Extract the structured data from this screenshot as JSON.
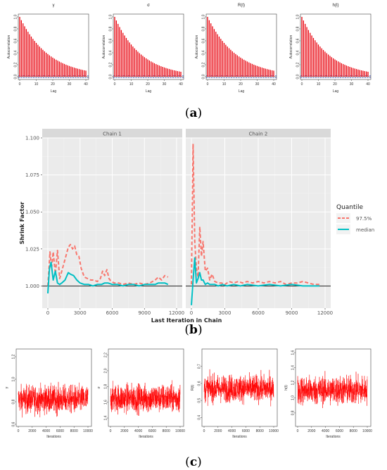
{
  "captions": {
    "a": "a",
    "b": "b",
    "c": "c"
  },
  "panel_a": {
    "xlabel": "Lag",
    "ylabel": "Autocorrelation",
    "yticks": [
      "0.0",
      "0.2",
      "0.4",
      "0.6",
      "0.8",
      "1.0"
    ],
    "xticks": [
      "0",
      "10",
      "20",
      "30",
      "40"
    ],
    "bar_color": "#e8000b",
    "ci_color": "#3b4bd8"
  },
  "panel_b": {
    "facets": [
      "Chain 1",
      "Chain 2"
    ],
    "xlabel": "Last Iteration in Chain",
    "ylabel": "Shrink Factor",
    "legend_title": "Quantile",
    "legend_items": [
      "97.5%",
      "median"
    ],
    "line_colors": {
      "q975": "#f8766d",
      "median": "#00bfc4"
    },
    "yticks": [
      "1.000",
      "1.025",
      "1.050",
      "1.075",
      "1.100"
    ],
    "xticks": [
      "0",
      "3000",
      "6000",
      "9000",
      "12000"
    ]
  },
  "panel_c": {
    "xlabel": "Iterations",
    "xticks": [
      "0",
      "2000",
      "4000",
      "6000",
      "8000",
      "10000"
    ],
    "trace_color": "#ff0000"
  },
  "chart_data": [
    {
      "type": "bar",
      "title": "γ",
      "xlabel": "Lag",
      "ylabel": "Autocorrelation",
      "x": [
        0,
        40
      ],
      "ylim": [
        0,
        1
      ],
      "decay": 0.053
    },
    {
      "type": "bar",
      "title": "σ",
      "xlabel": "Lag",
      "ylabel": "Autocorrelation",
      "x": [
        0,
        40
      ],
      "ylim": [
        0,
        1
      ],
      "decay": 0.058
    },
    {
      "type": "bar",
      "title": "R(t)",
      "xlabel": "Lag",
      "ylabel": "Autocorrelation",
      "x": [
        0,
        40
      ],
      "ylim": [
        0,
        1
      ],
      "decay": 0.053
    },
    {
      "type": "bar",
      "title": "h(t)",
      "xlabel": "Lag",
      "ylabel": "Autocorrelation",
      "x": [
        0,
        40
      ],
      "ylim": [
        0,
        1
      ],
      "decay": 0.058
    },
    {
      "type": "line",
      "facets": [
        "Chain 1",
        "Chain 2"
      ],
      "xlabel": "Last Iteration in Chain",
      "ylabel": "Shrink Factor",
      "xlim": [
        0,
        12000
      ],
      "ylim": [
        0.985,
        1.1
      ],
      "legend": "right",
      "series": [
        {
          "name": "97.5%",
          "facet": "Chain 1",
          "x": [
            0,
            200,
            350,
            500,
            700,
            900,
            1100,
            1300,
            1600,
            1900,
            2100,
            2300,
            2500,
            2700,
            2900,
            3100,
            3400,
            3700,
            4000,
            4300,
            4600,
            4900,
            5100,
            5300,
            5500,
            5700,
            5900,
            6200,
            6600,
            7000,
            7500,
            8000,
            8500,
            9000,
            9500,
            10000,
            10300,
            10600,
            10900,
            11200
          ],
          "values": [
            1.0,
            1.023,
            1.012,
            1.023,
            1.008,
            1.024,
            1.005,
            1.01,
            1.018,
            1.026,
            1.028,
            1.025,
            1.027,
            1.021,
            1.02,
            1.012,
            1.006,
            1.005,
            1.004,
            1.004,
            1.003,
            1.005,
            1.01,
            1.007,
            1.011,
            1.005,
            1.003,
            1.002,
            1.002,
            1.001,
            1.002,
            1.001,
            1.002,
            1.001,
            1.002,
            1.004,
            1.006,
            1.004,
            1.007,
            1.006
          ]
        },
        {
          "name": "median",
          "facet": "Chain 1",
          "x": [
            0,
            150,
            300,
            500,
            700,
            900,
            1100,
            1300,
            1600,
            1900,
            2100,
            2400,
            2700,
            3000,
            3400,
            3800,
            4200,
            4600,
            5000,
            5300,
            5600,
            6000,
            6500,
            7000,
            7500,
            8000,
            8500,
            9000,
            9500,
            10000,
            10300,
            10600,
            10900,
            11200
          ],
          "values": [
            0.995,
            1.012,
            1.016,
            1.004,
            1.01,
            1.002,
            1.001,
            1.002,
            1.004,
            1.009,
            1.008,
            1.007,
            1.004,
            1.002,
            1.001,
            1.001,
            1.0,
            1.001,
            1.001,
            1.002,
            1.002,
            1.001,
            1.001,
            1.0,
            1.001,
            1.001,
            1.0,
            1.001,
            1.001,
            1.001,
            1.002,
            1.002,
            1.002,
            1.001
          ]
        },
        {
          "name": "97.5%",
          "facet": "Chain 2",
          "x": [
            0,
            150,
            300,
            450,
            600,
            750,
            900,
            1050,
            1250,
            1450,
            1650,
            1850,
            2100,
            2400,
            2700,
            3000,
            3400,
            3800,
            4200,
            4600,
            5000,
            5500,
            6000,
            6500,
            7000,
            7500,
            8000,
            8500,
            9000,
            9500,
            10000,
            10500,
            11000,
            11500
          ],
          "values": [
            1.001,
            1.096,
            1.03,
            1.012,
            1.006,
            1.04,
            1.02,
            1.03,
            1.01,
            1.012,
            1.004,
            1.008,
            1.003,
            1.002,
            1.002,
            1.001,
            1.003,
            1.002,
            1.003,
            1.002,
            1.003,
            1.002,
            1.003,
            1.002,
            1.003,
            1.002,
            1.003,
            1.001,
            1.002,
            1.002,
            1.003,
            1.002,
            1.001,
            1.001
          ]
        },
        {
          "name": "median",
          "facet": "Chain 2",
          "x": [
            0,
            150,
            300,
            450,
            600,
            750,
            900,
            1050,
            1250,
            1450,
            1650,
            1850,
            2100,
            2400,
            2800,
            3200,
            3800,
            4400,
            5000,
            6000,
            7000,
            8000,
            9000,
            10000,
            11000,
            11500
          ],
          "values": [
            0.987,
            1.004,
            1.019,
            1.002,
            1.005,
            1.009,
            1.004,
            1.004,
            1.001,
            1.002,
            1.001,
            1.001,
            1.001,
            1.0,
            1.001,
            1.0,
            1.001,
            1.0,
            1.001,
            1.0,
            1.001,
            1.0,
            1.001,
            1.0,
            1.0,
            1.0
          ]
        }
      ]
    },
    {
      "type": "line",
      "ylabel": "γ",
      "xlabel": "Iterations",
      "xlim": [
        0,
        10000
      ],
      "yticks": [
        "0.6",
        "0.8",
        "1.0",
        "1.2"
      ],
      "yrange": [
        0.6,
        1.25
      ],
      "mean": 0.82,
      "spread": 0.11
    },
    {
      "type": "line",
      "ylabel": "σ",
      "xlabel": "Iterations",
      "xlim": [
        0,
        10000
      ],
      "yticks": [
        "1.4",
        "1.6",
        "1.8",
        "2.0",
        "2.2"
      ],
      "yrange": [
        1.32,
        2.25
      ],
      "mean": 1.65,
      "spread": 0.16
    },
    {
      "type": "line",
      "ylabel": "R(t)",
      "xlabel": "Iterations",
      "xlim": [
        0,
        10000
      ],
      "yticks": [
        "0.4",
        "0.5",
        "0.6",
        "0.7"
      ],
      "yrange": [
        0.36,
        0.79
      ],
      "mean": 0.57,
      "spread": 0.07
    },
    {
      "type": "line",
      "ylabel": "h(t)",
      "xlabel": "Iterations",
      "xlim": [
        0,
        10000
      ],
      "yticks": [
        "0.8",
        "1.0",
        "1.2",
        "1.4",
        "1.6"
      ],
      "yrange": [
        0.65,
        1.62
      ],
      "mean": 1.1,
      "spread": 0.17
    }
  ]
}
